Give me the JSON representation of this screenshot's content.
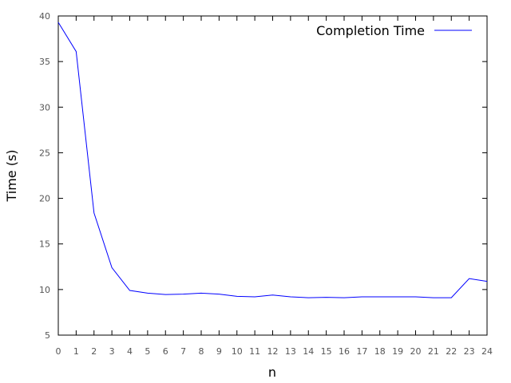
{
  "chart_data": {
    "type": "line",
    "title": "",
    "xlabel": "n",
    "ylabel": "Time (s)",
    "xlim": [
      0,
      24
    ],
    "ylim": [
      5,
      40
    ],
    "x_ticks": [
      0,
      1,
      2,
      3,
      4,
      5,
      6,
      7,
      8,
      9,
      10,
      11,
      12,
      13,
      14,
      15,
      16,
      17,
      18,
      19,
      20,
      21,
      22,
      23,
      24
    ],
    "y_ticks": [
      5,
      10,
      15,
      20,
      25,
      30,
      35,
      40
    ],
    "grid": false,
    "legend": {
      "placement": "top-right"
    },
    "series": [
      {
        "name": "Completion Time",
        "color": "#0000ff",
        "x": [
          0,
          1,
          2,
          3,
          4,
          5,
          6,
          7,
          8,
          9,
          10,
          11,
          12,
          13,
          14,
          15,
          16,
          17,
          18,
          19,
          20,
          21,
          22,
          23,
          24
        ],
        "y": [
          39.3,
          36.1,
          18.4,
          12.4,
          9.9,
          9.6,
          9.45,
          9.5,
          9.6,
          9.5,
          9.25,
          9.2,
          9.4,
          9.2,
          9.1,
          9.15,
          9.1,
          9.2,
          9.2,
          9.2,
          9.2,
          9.1,
          9.1,
          11.2,
          10.9
        ]
      }
    ]
  }
}
